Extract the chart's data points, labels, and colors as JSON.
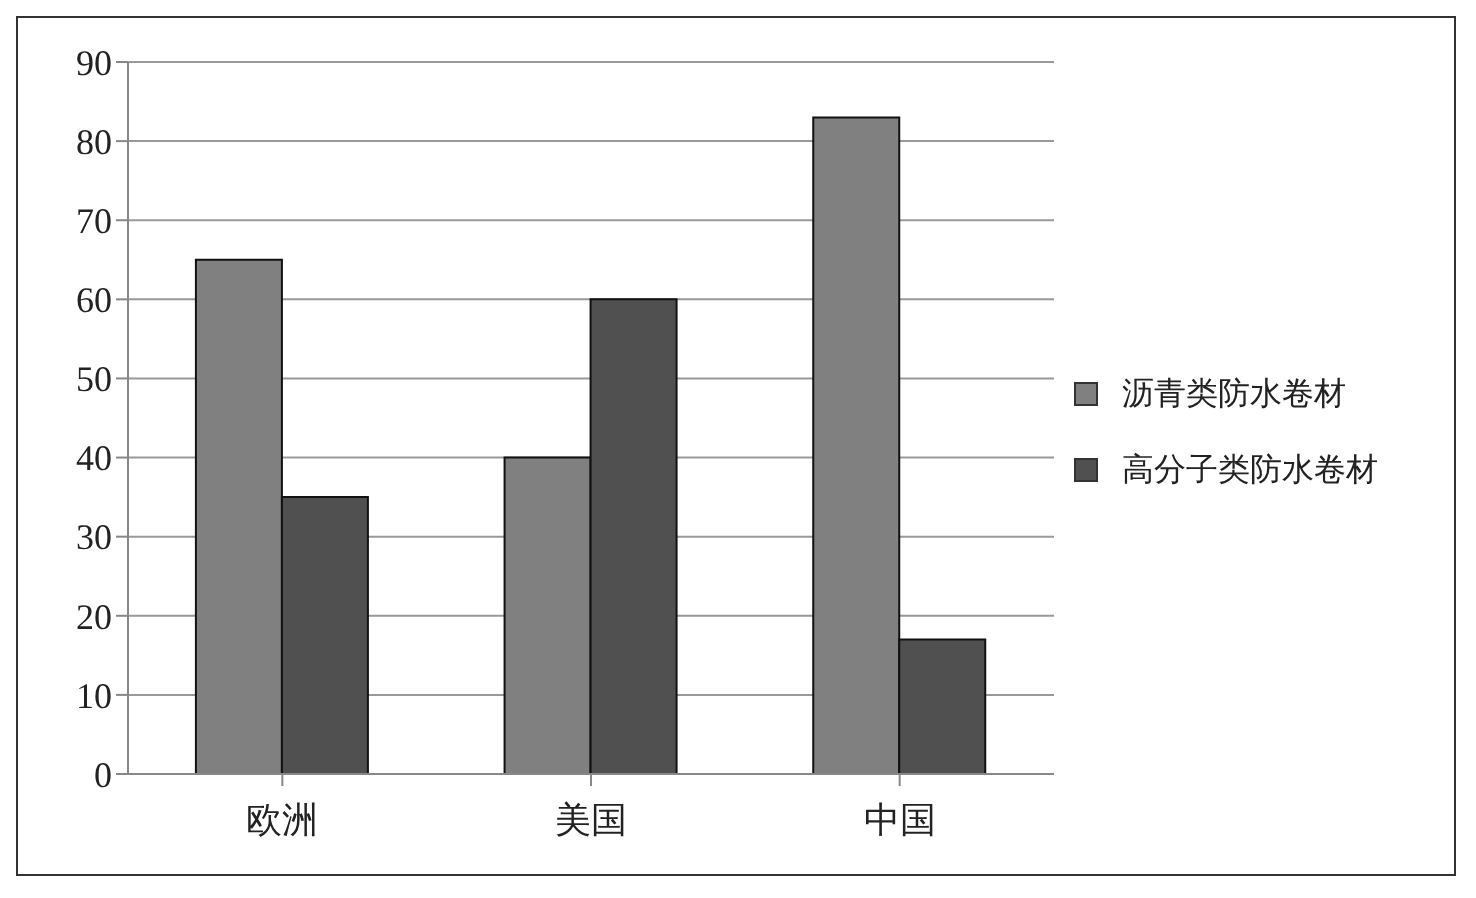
{
  "chart_data": {
    "type": "bar",
    "categories": [
      "欧洲",
      "美国",
      "中国"
    ],
    "series": [
      {
        "name": "沥青类防水卷材",
        "color": "#808080",
        "values": [
          65,
          40,
          83
        ]
      },
      {
        "name": "高分子类防水卷材",
        "color": "#505050",
        "values": [
          35,
          60,
          17
        ]
      }
    ],
    "ylim": [
      0,
      90
    ],
    "yticks": [
      0,
      10,
      20,
      30,
      40,
      50,
      60,
      70,
      80,
      90
    ],
    "grid": "y",
    "legend": "right"
  }
}
